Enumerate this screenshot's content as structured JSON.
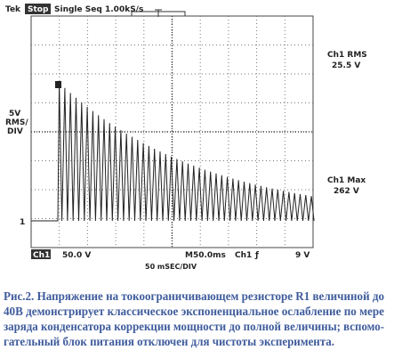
{
  "header": {
    "brand": "Tek",
    "status": "Stop",
    "mode": "Single Seq",
    "rate": "1.00kS/s"
  },
  "left_label": [
    "5V",
    "RMS/",
    "DIV"
  ],
  "ground_marker": "1",
  "measurements": [
    {
      "label": "Ch1 RMS",
      "value": "25.5 V"
    },
    {
      "label": "Ch1 Max",
      "value": "262 V"
    }
  ],
  "footer": {
    "channel": "Ch1",
    "scale": "50.0 V",
    "timebase": "M50.0ms",
    "trigger_source": "Ch1",
    "trigger_slope": "ƒ",
    "trigger_level": "9 V",
    "time_div": "50 mSEC/DIV"
  },
  "caption": [
    "Рис.2. Напряжение на токоограничивающем резисторе R1 величиной до",
    "40В демонстрирует классическое экспоненциальное ослабление по мере",
    "заряда конденсатора коррекции мощности до полной величины; вспомо-",
    "гательный блок питания отключен для чистоты эксперимента."
  ]
}
